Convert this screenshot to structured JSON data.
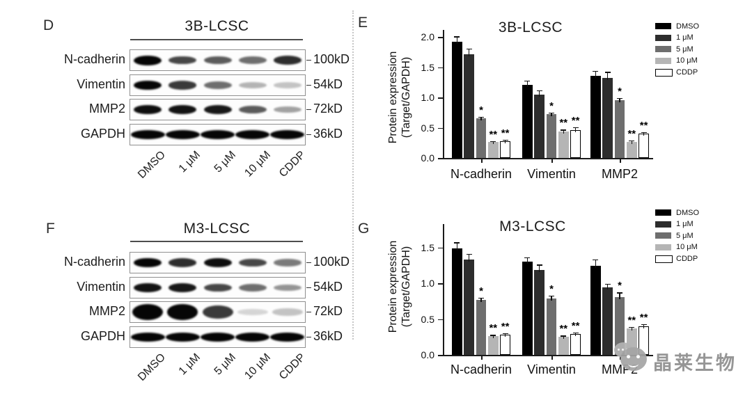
{
  "figure": {
    "panel_letters": {
      "D": "D",
      "E": "E",
      "F": "F",
      "G": "G"
    }
  },
  "blots": [
    {
      "id": "D",
      "title": "3B-LCSC",
      "lanes": [
        "DMSO",
        "1 μM",
        "5 μM",
        "10 μM",
        "CDDP"
      ],
      "rows": [
        {
          "protein": "N-cadherin",
          "marker": "100kD",
          "style": "normal",
          "bands": [
            1.0,
            0.7,
            0.62,
            0.55,
            0.8
          ]
        },
        {
          "protein": "Vimentin",
          "marker": "54kD",
          "style": "normal",
          "bands": [
            0.95,
            0.75,
            0.55,
            0.28,
            0.22
          ]
        },
        {
          "protein": "MMP2",
          "marker": "72kD",
          "style": "normal",
          "bands": [
            0.92,
            0.9,
            0.88,
            0.62,
            0.35
          ]
        },
        {
          "protein": "GAPDH",
          "marker": "36kD",
          "style": "thick",
          "bands": [
            1,
            1,
            1,
            1,
            1
          ]
        }
      ]
    },
    {
      "id": "F",
      "title": "M3-LCSC",
      "lanes": [
        "DMSO",
        "1 μM",
        "5 μM",
        "10 μM",
        "CDDP"
      ],
      "rows": [
        {
          "protein": "N-cadherin",
          "marker": "100kD",
          "style": "normal",
          "bands": [
            0.95,
            0.8,
            0.92,
            0.7,
            0.5
          ]
        },
        {
          "protein": "Vimentin",
          "marker": "54kD",
          "style": "normal",
          "bands": [
            0.9,
            0.88,
            0.7,
            0.55,
            0.4
          ]
        },
        {
          "protein": "MMP2",
          "marker": "72kD",
          "style": "blotchy",
          "bands": [
            1.0,
            0.95,
            0.75,
            0.15,
            0.22
          ]
        },
        {
          "protein": "GAPDH",
          "marker": "36kD",
          "style": "thick",
          "bands": [
            1,
            1,
            1,
            1,
            1
          ]
        }
      ]
    }
  ],
  "chart_data": [
    {
      "type": "bar",
      "panel": "E",
      "title": "3B-LCSC",
      "ylabel_line1": "Protein expression",
      "ylabel_line2": "(Target/GAPDH)",
      "categories": [
        "N-cadherin",
        "Vimentin",
        "MMP2"
      ],
      "ylim": [
        0,
        2.0
      ],
      "yticks": [
        0.0,
        0.5,
        1.0,
        1.5,
        2.0
      ],
      "legend_position": "right",
      "grid": false,
      "series": [
        {
          "name": "DMSO",
          "color": "#000000",
          "values": [
            1.92,
            1.21,
            1.36
          ],
          "errors": [
            0.09,
            0.07,
            0.08
          ],
          "sig": [
            "",
            "",
            ""
          ]
        },
        {
          "name": "1 μM",
          "color": "#2d2d2d",
          "values": [
            1.71,
            1.05,
            1.32
          ],
          "errors": [
            0.1,
            0.07,
            0.1
          ],
          "sig": [
            "",
            "",
            ""
          ]
        },
        {
          "name": "5 μM",
          "color": "#6e6e6e",
          "values": [
            0.65,
            0.72,
            0.95
          ],
          "errors": [
            0.03,
            0.03,
            0.04
          ],
          "sig": [
            "*",
            "*",
            "*"
          ]
        },
        {
          "name": "10 μM",
          "color": "#b5b5b5",
          "values": [
            0.26,
            0.44,
            0.26
          ],
          "errors": [
            0.02,
            0.03,
            0.03
          ],
          "sig": [
            "**",
            "**",
            "**"
          ]
        },
        {
          "name": "CDDP",
          "color": "#ffffff",
          "values": [
            0.28,
            0.46,
            0.4
          ],
          "errors": [
            0.02,
            0.05,
            0.03
          ],
          "sig": [
            "**",
            "**",
            "**"
          ]
        }
      ]
    },
    {
      "type": "bar",
      "panel": "G",
      "title": "M3-LCSC",
      "ylabel_line1": "Protein expression",
      "ylabel_line2": "(Target/GAPDH)",
      "categories": [
        "N-cadherin",
        "Vimentin",
        "MMP2"
      ],
      "ylim": [
        0,
        1.75
      ],
      "yticks": [
        0.0,
        0.5,
        1.0,
        1.5
      ],
      "legend_position": "right",
      "grid": false,
      "series": [
        {
          "name": "DMSO",
          "color": "#000000",
          "values": [
            1.49,
            1.3,
            1.24
          ],
          "errors": [
            0.08,
            0.06,
            0.09
          ],
          "sig": [
            "",
            "",
            ""
          ]
        },
        {
          "name": "1 μM",
          "color": "#2d2d2d",
          "values": [
            1.33,
            1.18,
            0.94
          ],
          "errors": [
            0.08,
            0.08,
            0.05
          ],
          "sig": [
            "",
            "",
            ""
          ]
        },
        {
          "name": "5 μM",
          "color": "#6e6e6e",
          "values": [
            0.77,
            0.79,
            0.81
          ],
          "errors": [
            0.03,
            0.04,
            0.06
          ],
          "sig": [
            "*",
            "*",
            "*"
          ]
        },
        {
          "name": "10 μM",
          "color": "#b5b5b5",
          "values": [
            0.26,
            0.25,
            0.37
          ],
          "errors": [
            0.02,
            0.02,
            0.02
          ],
          "sig": [
            "**",
            "**",
            "**"
          ]
        },
        {
          "name": "CDDP",
          "color": "#ffffff",
          "values": [
            0.28,
            0.29,
            0.4
          ],
          "errors": [
            0.02,
            0.02,
            0.03
          ],
          "sig": [
            "**",
            "**",
            "**"
          ]
        }
      ]
    }
  ],
  "watermark": {
    "text": "晶莱生物"
  }
}
